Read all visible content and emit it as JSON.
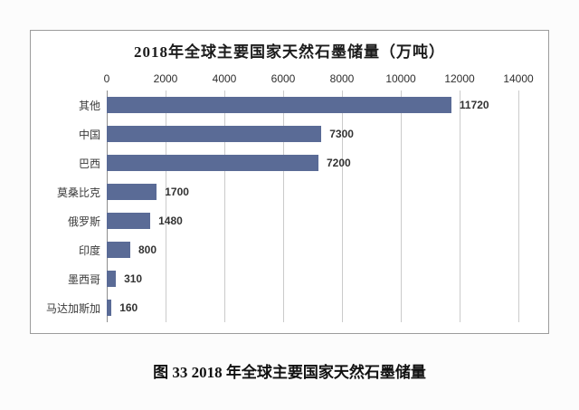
{
  "page": {
    "caption": "图 33 2018 年全球主要国家天然石墨储量"
  },
  "chart_data": {
    "type": "bar",
    "orientation": "horizontal",
    "title": "2018年全球主要国家天然石墨储量（万吨）",
    "categories": [
      "其他",
      "中国",
      "巴西",
      "莫桑比克",
      "俄罗斯",
      "印度",
      "墨西哥",
      "马达加斯加"
    ],
    "values": [
      11720,
      7300,
      7200,
      1700,
      1480,
      800,
      310,
      160
    ],
    "value_labels": [
      "11720",
      "7300",
      "7200",
      "1700",
      "1480",
      "800",
      "310",
      "160"
    ],
    "xlabel": "",
    "ylabel": "",
    "xlim": [
      0,
      14000
    ],
    "x_ticks": [
      0,
      2000,
      4000,
      6000,
      8000,
      10000,
      12000,
      14000
    ],
    "grid": "vertical",
    "legend": "none",
    "bar_color": "#5a6b96",
    "gridline_color": "#cbcbcb"
  }
}
